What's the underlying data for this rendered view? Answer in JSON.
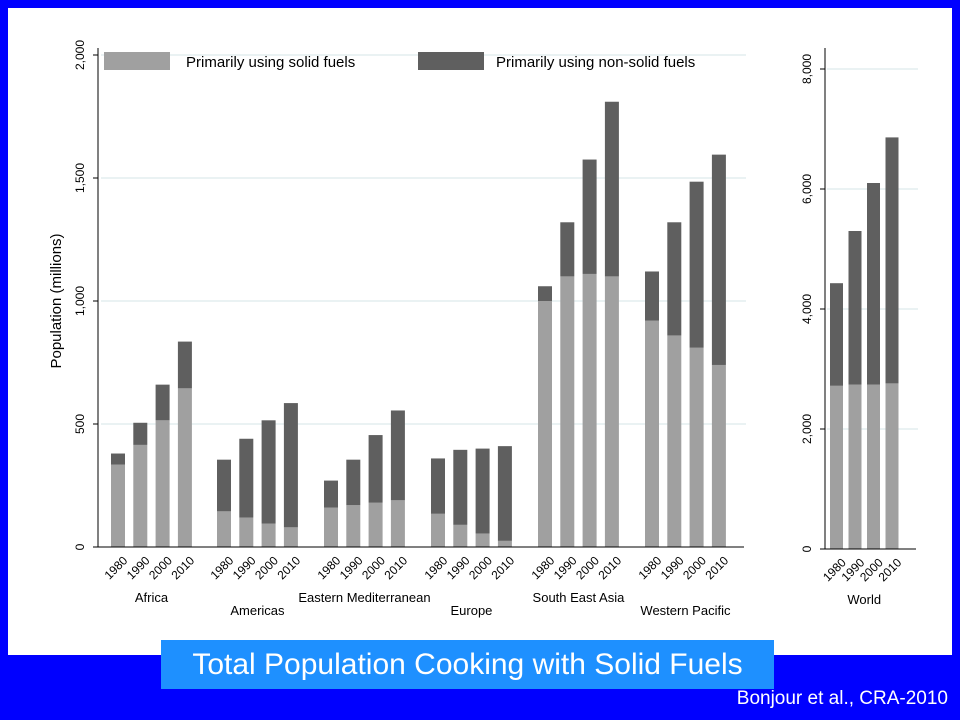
{
  "colors": {
    "solid": "#A0A0A0",
    "nonsolid": "#5F5F5F",
    "background": "#0000FF",
    "title_box": "#1E90FF",
    "grid": "#E3EDEF"
  },
  "slide": {
    "title": "Total Population Cooking with Solid Fuels",
    "citation": "Bonjour et al., CRA-2010"
  },
  "chart_data": [
    {
      "type": "bar",
      "stacked": true,
      "ylabel": "Population (millions)",
      "ylim": [
        0,
        2000
      ],
      "yticks": [
        0,
        500,
        1000,
        1500,
        2000
      ],
      "ytick_labels": [
        "0",
        "500",
        "1,000",
        "1,500",
        "2,000"
      ],
      "grid": true,
      "legend_position": "top",
      "legend": [
        "Primarily using solid fuels",
        "Primarily using non-solid fuels"
      ],
      "years": [
        "1980",
        "1990",
        "2000",
        "2010"
      ],
      "groups": [
        {
          "name": "Africa",
          "solid": [
            335,
            415,
            515,
            645
          ],
          "nonsolid": [
            45,
            90,
            145,
            190
          ]
        },
        {
          "name": "Americas",
          "solid": [
            145,
            120,
            95,
            80
          ],
          "nonsolid": [
            210,
            320,
            420,
            505
          ]
        },
        {
          "name": "Eastern Mediterranean",
          "solid": [
            160,
            170,
            180,
            190
          ],
          "nonsolid": [
            110,
            185,
            275,
            365
          ]
        },
        {
          "name": "Europe",
          "solid": [
            135,
            90,
            55,
            25
          ],
          "nonsolid": [
            225,
            305,
            345,
            385
          ]
        },
        {
          "name": "South East Asia",
          "solid": [
            1000,
            1100,
            1110,
            1100
          ],
          "nonsolid": [
            60,
            220,
            465,
            710
          ]
        },
        {
          "name": "Western Pacific",
          "solid": [
            920,
            860,
            810,
            740
          ],
          "nonsolid": [
            200,
            460,
            675,
            855
          ]
        }
      ]
    },
    {
      "type": "bar",
      "stacked": true,
      "ylim": [
        0,
        8000
      ],
      "yticks": [
        0,
        2000,
        4000,
        6000,
        8000
      ],
      "ytick_labels": [
        "0",
        "2,000",
        "4,000",
        "6,000",
        "8,000"
      ],
      "grid": true,
      "years": [
        "1980",
        "1990",
        "2000",
        "2010"
      ],
      "groups": [
        {
          "name": "World",
          "solid": [
            2720,
            2740,
            2740,
            2760
          ],
          "nonsolid": [
            1710,
            2560,
            3360,
            4100
          ]
        }
      ]
    }
  ]
}
